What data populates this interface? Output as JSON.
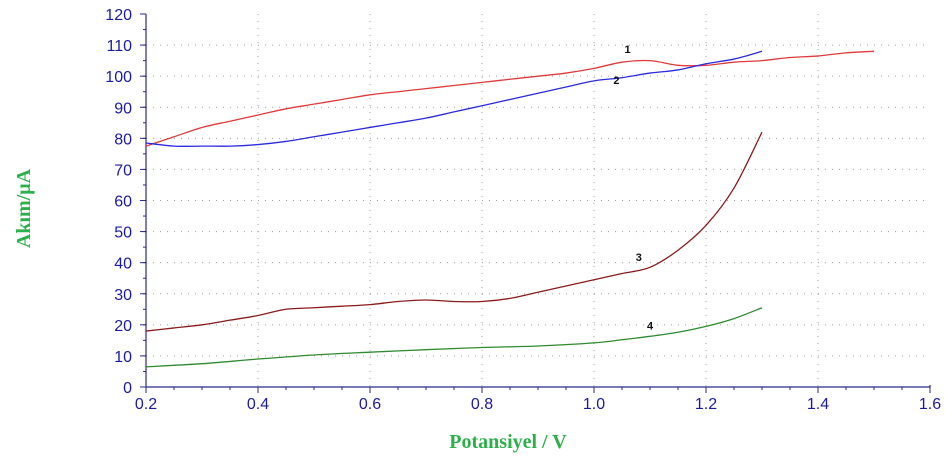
{
  "chart_data": {
    "type": "line",
    "xlabel": "Potansiyel / V",
    "ylabel": "Akım/μA",
    "xlim": [
      0.2,
      1.6
    ],
    "ylim": [
      0,
      120
    ],
    "xticks": [
      "0.2",
      "0.4",
      "0.6",
      "0.8",
      "1.0",
      "1.2",
      "1.4",
      "1.6"
    ],
    "yticks": [
      "0",
      "10",
      "20",
      "30",
      "40",
      "50",
      "60",
      "70",
      "80",
      "90",
      "100",
      "110",
      "120"
    ],
    "grid": true,
    "series": [
      {
        "name": "1",
        "color": "#e03a3a",
        "x": [
          0.2,
          0.25,
          0.3,
          0.35,
          0.4,
          0.45,
          0.5,
          0.55,
          0.6,
          0.65,
          0.7,
          0.75,
          0.8,
          0.85,
          0.9,
          0.95,
          1.0,
          1.05,
          1.1,
          1.15,
          1.2,
          1.25,
          1.3,
          1.35,
          1.4,
          1.45,
          1.5
        ],
        "y": [
          77.5,
          80.5,
          83.5,
          85.5,
          87.5,
          89.5,
          91.0,
          92.5,
          94.0,
          95.0,
          96.0,
          97.0,
          98.0,
          99.0,
          100.0,
          101.0,
          102.5,
          104.5,
          105.0,
          103.5,
          103.5,
          104.5,
          105.0,
          106.0,
          106.5,
          107.5,
          108.0
        ]
      },
      {
        "name": "2",
        "color": "#2a2ae0",
        "x": [
          0.2,
          0.25,
          0.3,
          0.35,
          0.4,
          0.45,
          0.5,
          0.55,
          0.6,
          0.65,
          0.7,
          0.75,
          0.8,
          0.85,
          0.9,
          0.95,
          1.0,
          1.05,
          1.1,
          1.15,
          1.2,
          1.25,
          1.3
        ],
        "y": [
          78.5,
          77.5,
          77.5,
          77.5,
          78.0,
          79.0,
          80.5,
          82.0,
          83.5,
          85.0,
          86.5,
          88.5,
          90.5,
          92.5,
          94.5,
          96.5,
          98.5,
          99.5,
          101.0,
          102.0,
          104.0,
          105.5,
          108.0
        ]
      },
      {
        "name": "3",
        "color": "#8b1a1a",
        "x": [
          0.2,
          0.25,
          0.3,
          0.35,
          0.4,
          0.45,
          0.5,
          0.55,
          0.6,
          0.65,
          0.7,
          0.75,
          0.8,
          0.85,
          0.9,
          0.95,
          1.0,
          1.05,
          1.1,
          1.15,
          1.2,
          1.25,
          1.3
        ],
        "y": [
          18.0,
          19.0,
          20.0,
          21.5,
          23.0,
          25.0,
          25.5,
          26.0,
          26.5,
          27.5,
          28.0,
          27.5,
          27.5,
          28.5,
          30.5,
          32.5,
          34.5,
          36.5,
          38.5,
          44.0,
          52.0,
          64.0,
          82.0
        ]
      },
      {
        "name": "4",
        "color": "#2e8b2e",
        "x": [
          0.2,
          0.3,
          0.4,
          0.5,
          0.6,
          0.7,
          0.8,
          0.9,
          1.0,
          1.05,
          1.1,
          1.15,
          1.2,
          1.25,
          1.3
        ],
        "y": [
          6.5,
          7.5,
          9.0,
          10.3,
          11.2,
          12.0,
          12.7,
          13.2,
          14.2,
          15.2,
          16.3,
          17.6,
          19.5,
          22.0,
          25.5
        ]
      }
    ]
  }
}
